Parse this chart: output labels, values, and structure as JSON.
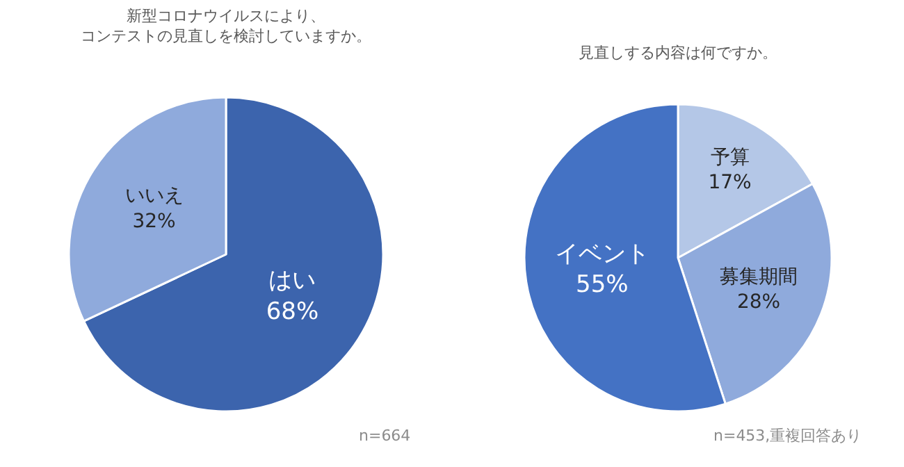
{
  "chart_data": [
    {
      "type": "pie",
      "title": "新型コロナウイルスにより、コンテストの見直しを検討していますか。",
      "categories": [
        "はい",
        "いいえ"
      ],
      "values": [
        68,
        32
      ],
      "value_labels": [
        "68%",
        "32%"
      ],
      "colors": [
        "#3c64ad",
        "#8faadc"
      ],
      "legend": false,
      "annotations": [
        "n=664"
      ]
    },
    {
      "type": "pie",
      "title": "見直しする内容は何ですか。",
      "categories": [
        "予算",
        "募集期間",
        "イベント"
      ],
      "values": [
        17,
        28,
        55
      ],
      "value_labels": [
        "17%",
        "28%",
        "55%"
      ],
      "colors": [
        "#b4c7e7",
        "#8faadc",
        "#4472c4"
      ],
      "legend": false,
      "annotations": [
        "n=453,重複回答あり"
      ]
    }
  ]
}
